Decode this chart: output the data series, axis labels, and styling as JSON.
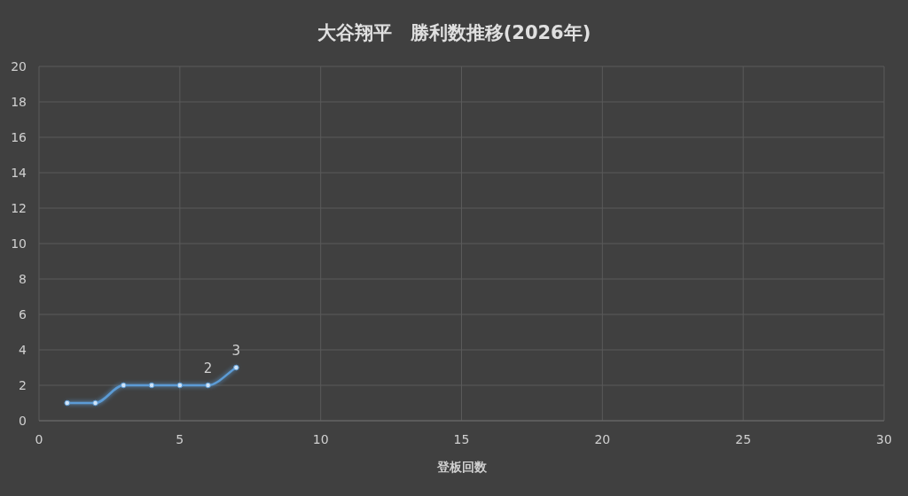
{
  "chart_data": {
    "type": "line",
    "title": "大谷翔平　勝利数推移(2026年)",
    "xlabel": "登板回数",
    "x": [
      1,
      2,
      3,
      4,
      5,
      6,
      7
    ],
    "series": [
      {
        "color": "#5b9bd5",
        "values": [
          1,
          1,
          2,
          2,
          2,
          2,
          3
        ],
        "value_labels": [
          null,
          null,
          null,
          null,
          null,
          "2",
          "3"
        ]
      }
    ],
    "xlim": [
      0,
      30
    ],
    "xticks": [
      0,
      5,
      10,
      15,
      20,
      25,
      30
    ],
    "ylim": [
      0,
      20
    ],
    "yticks": [
      0,
      2,
      4,
      6,
      8,
      10,
      12,
      14,
      16,
      18,
      20
    ],
    "grid": true,
    "marker": "circle"
  }
}
